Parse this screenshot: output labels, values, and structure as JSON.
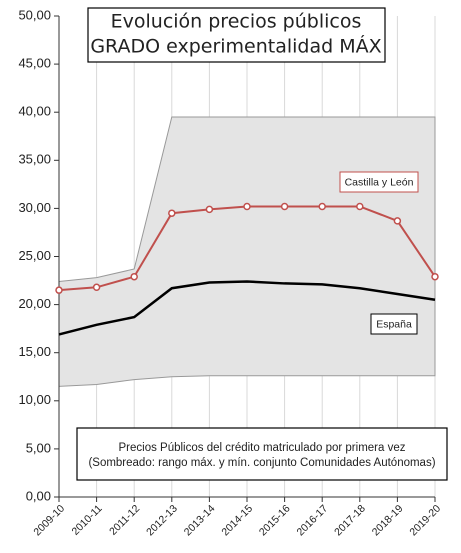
{
  "chart_data": {
    "type": "line",
    "title": [
      "Evolución precios públicos",
      "GRADO experimentalidad MÁX"
    ],
    "note": [
      "Precios Públicos del crédito matriculado por primera vez",
      "(Sombreado: rango máx. y mín. conjunto Comunidades Autónomas)"
    ],
    "categories": [
      "2009-10",
      "2010-11",
      "2011-12",
      "2012-13",
      "2013-14",
      "2014-15",
      "2015-16",
      "2016-17",
      "2017-18",
      "2018-19",
      "2019-20"
    ],
    "series": [
      {
        "name": "Castilla y León",
        "color": "#c0504d",
        "values": [
          21.5,
          21.8,
          22.9,
          29.5,
          29.9,
          30.2,
          30.2,
          30.2,
          30.2,
          28.7,
          22.9
        ]
      },
      {
        "name": "España",
        "color": "#000000",
        "values": [
          16.9,
          17.9,
          18.7,
          21.7,
          22.3,
          22.4,
          22.2,
          22.1,
          21.7,
          21.1,
          20.5
        ]
      }
    ],
    "band": {
      "color": "#e4e4e4",
      "upper": [
        22.4,
        22.8,
        23.7,
        39.5,
        39.5,
        39.5,
        39.5,
        39.5,
        39.5,
        39.5,
        39.5
      ],
      "lower": [
        11.5,
        11.7,
        12.2,
        12.5,
        12.6,
        12.6,
        12.6,
        12.6,
        12.6,
        12.6,
        12.6
      ]
    },
    "ylim": [
      0,
      50
    ],
    "yticks": [
      {
        "value": 0,
        "label": "0,00"
      },
      {
        "value": 5,
        "label": "5,00"
      },
      {
        "value": 10,
        "label": "10,00"
      },
      {
        "value": 15,
        "label": "15,00"
      },
      {
        "value": 20,
        "label": "20,00"
      },
      {
        "value": 25,
        "label": "25,00"
      },
      {
        "value": 30,
        "label": "30,00"
      },
      {
        "value": 35,
        "label": "35,00"
      },
      {
        "value": 40,
        "label": "40,00"
      },
      {
        "value": 45,
        "label": "45,00"
      },
      {
        "value": 50,
        "label": "50,00"
      }
    ],
    "grid": true
  }
}
